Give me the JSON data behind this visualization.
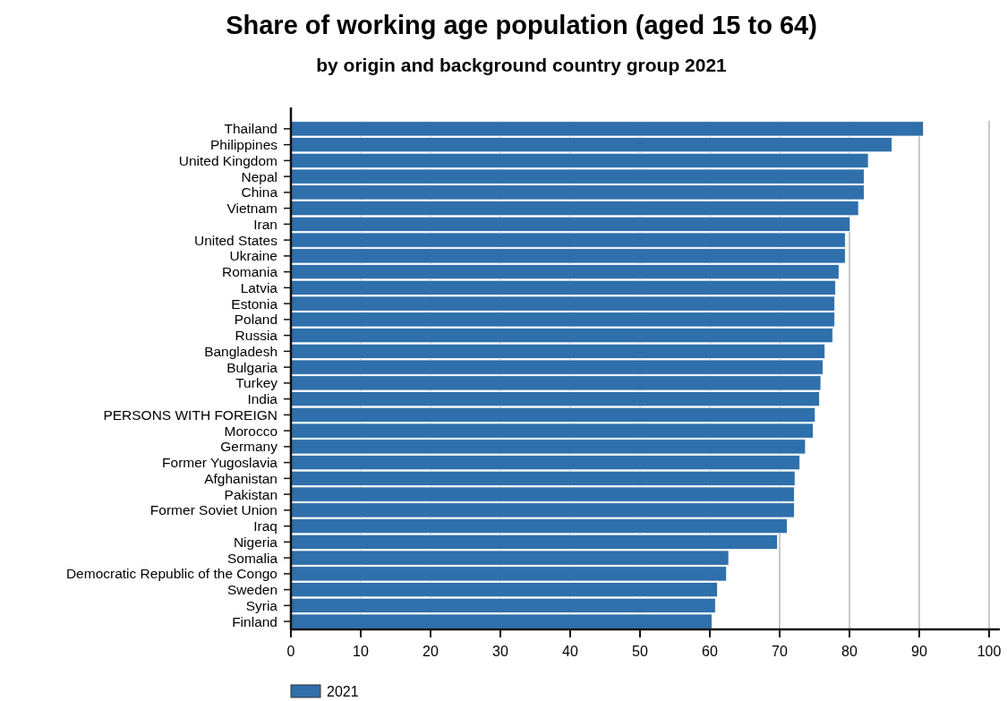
{
  "chart_data": {
    "type": "bar",
    "orientation": "horizontal",
    "title": "Share of working age population (aged 15 to 64)",
    "subtitle": "by origin and background country group 2021",
    "categories": [
      "Thailand",
      "Philippines",
      "United Kingdom",
      "Nepal",
      "China",
      "Vietnam",
      "Iran",
      "United States",
      "Ukraine",
      "Romania",
      "Latvia",
      "Estonia",
      "Poland",
      "Russia",
      "Bangladesh",
      "Bulgaria",
      "Turkey",
      "India",
      "PERSONS WITH FOREIGN",
      "Morocco",
      "Germany",
      "Former Yugoslavia",
      "Afghanistan",
      "Pakistan",
      "Former Soviet Union",
      "Iraq",
      "Nigeria",
      "Somalia",
      "Democratic Republic of the Congo",
      "Sweden",
      "Syria",
      "Finland"
    ],
    "series": [
      {
        "name": "2021",
        "color": "#2f6fab",
        "values": [
          90.6,
          86.1,
          82.7,
          82.1,
          82.1,
          81.3,
          80.1,
          79.4,
          79.4,
          78.5,
          78.0,
          77.9,
          77.9,
          77.6,
          76.5,
          76.2,
          75.9,
          75.7,
          75.1,
          74.8,
          73.7,
          72.9,
          72.2,
          72.1,
          72.1,
          71.1,
          69.7,
          62.7,
          62.4,
          61.1,
          60.8,
          60.3
        ]
      }
    ],
    "xlim": [
      0,
      100
    ],
    "xticks": [
      0,
      10,
      20,
      30,
      40,
      50,
      60,
      70,
      80,
      90,
      100
    ],
    "grid": "x",
    "legend": "bottom"
  }
}
